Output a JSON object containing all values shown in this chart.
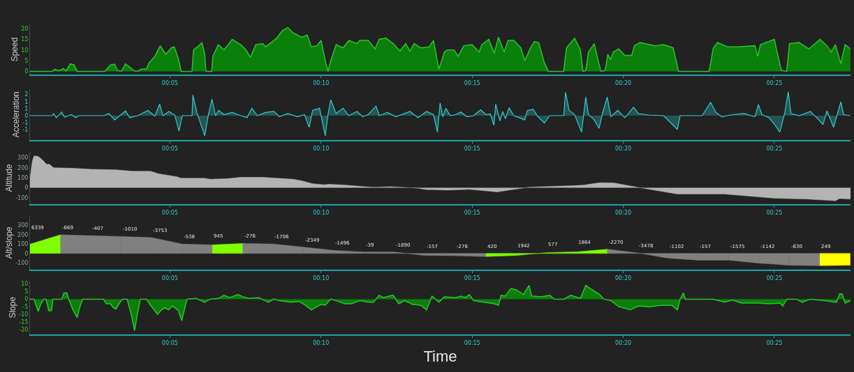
{
  "chart_data": [
    {
      "type": "area",
      "ylabel": "Speed",
      "color": "#0a7f0a",
      "xlim": [
        0.37,
        27.52
      ],
      "xticks": [
        {
          "value": 5,
          "label": "00:05"
        },
        {
          "value": 10,
          "label": "00:10"
        },
        {
          "value": 15,
          "label": "00:15"
        },
        {
          "value": 20,
          "label": "00:20"
        },
        {
          "value": 25,
          "label": "00:25"
        }
      ],
      "ylim": [
        -1.5,
        22
      ],
      "yticks": [
        0,
        5,
        10,
        15,
        20
      ],
      "x": [
        0.37,
        1.1,
        1.19,
        1.33,
        1.47,
        1.56,
        1.7,
        1.83,
        1.93,
        2.84,
        3.03,
        3.17,
        3.26,
        3.39,
        3.53,
        3.81,
        3.94,
        4.04,
        4.22,
        4.31,
        4.5,
        4.68,
        4.86,
        5.05,
        5.14,
        5.28,
        5.37,
        5.73,
        5.78,
        5.96,
        6.06,
        6.15,
        6.19,
        6.38,
        6.42,
        6.6,
        6.79,
        7.06,
        7.34,
        7.52,
        7.66,
        7.84,
        8.07,
        8.17,
        8.53,
        8.72,
        8.9,
        9.08,
        9.36,
        9.54,
        9.68,
        9.86,
        10.0,
        10.14,
        10.23,
        10.32,
        10.5,
        10.73,
        10.92,
        11.19,
        11.28,
        11.56,
        11.79,
        11.92,
        12.15,
        12.39,
        12.61,
        12.8,
        12.94,
        13.08,
        13.3,
        13.58,
        13.72,
        13.9,
        14.08,
        14.17,
        14.4,
        14.54,
        14.72,
        15.0,
        15.23,
        15.32,
        15.55,
        15.73,
        15.87,
        16.06,
        16.19,
        16.38,
        16.61,
        16.74,
        16.93,
        17.06,
        17.2,
        17.39,
        17.52,
        18.03,
        18.12,
        18.39,
        18.58,
        18.67,
        18.76,
        18.85,
        19.04,
        19.17,
        19.26,
        19.4,
        19.49,
        19.58,
        19.67,
        19.85,
        20.05,
        20.28,
        20.37,
        20.55,
        21.06,
        21.33,
        21.65,
        21.83,
        22.84,
        22.98,
        23.12,
        23.44,
        23.81,
        24.36,
        24.45,
        24.54,
        25.0,
        25.09,
        25.23,
        25.41,
        25.5,
        25.82,
        26.14,
        26.51,
        26.74,
        26.88,
        27.02,
        27.2,
        27.34,
        27.52
      ],
      "values": [
        0,
        0,
        1,
        0.3,
        1.3,
        0.2,
        3.5,
        3,
        0,
        0,
        3,
        3.4,
        0.5,
        0,
        3.5,
        0.3,
        0,
        1,
        1,
        4,
        7,
        12,
        8,
        11,
        11.5,
        6,
        0,
        0,
        10,
        12,
        13.5,
        8,
        0,
        0,
        7,
        12.5,
        10,
        15,
        12.5,
        10,
        6.5,
        12.5,
        13,
        11.5,
        15.5,
        19,
        20.5,
        18,
        16,
        17,
        11.5,
        12,
        14.5,
        5,
        0,
        5,
        12.5,
        11,
        14.5,
        13,
        14.5,
        14.5,
        10.5,
        15,
        15.5,
        13,
        9.5,
        13,
        9.5,
        13,
        11,
        11.5,
        14.5,
        1,
        9,
        10,
        10,
        7,
        12,
        12.5,
        9,
        12.5,
        15,
        8.5,
        16,
        9,
        14.5,
        14.5,
        11,
        5,
        11,
        14,
        13.5,
        4,
        0,
        0,
        11,
        15.5,
        10,
        0,
        0.5,
        9,
        13,
        5,
        0,
        0.5,
        8,
        5.5,
        9,
        10.5,
        7.5,
        7.5,
        12,
        13.5,
        12,
        12.5,
        11,
        0,
        0,
        11,
        13.5,
        11.5,
        11.5,
        12,
        7,
        12.5,
        15,
        9,
        0.5,
        0,
        13,
        13.5,
        10.5,
        15,
        12,
        9,
        12.5,
        3.5,
        12.5,
        10.5
      ]
    },
    {
      "type": "area",
      "ylabel": "Acceleration",
      "color": "#33cccc",
      "xlim": [
        0.37,
        27.52
      ],
      "xticks": [
        {
          "value": 5,
          "label": "00:05"
        },
        {
          "value": 10,
          "label": "00:10"
        },
        {
          "value": 15,
          "label": "00:15"
        },
        {
          "value": 20,
          "label": "00:20"
        },
        {
          "value": 25,
          "label": "00:25"
        }
      ],
      "ylim": [
        -2.3,
        2.5
      ],
      "yticks": [
        {
          "value": 2,
          "label": "2"
        },
        {
          "value": 1.333,
          "label": "1"
        },
        {
          "value": 0.667,
          "label": "1"
        },
        {
          "value": 0,
          "label": "0"
        },
        {
          "value": -0.667,
          "label": "-1"
        },
        {
          "value": -1.333,
          "label": "-1"
        }
      ],
      "x": [
        0.37,
        1.1,
        1.15,
        1.24,
        1.42,
        1.51,
        1.74,
        1.88,
        1.97,
        2.8,
        2.98,
        3.17,
        3.53,
        3.67,
        3.94,
        4.27,
        4.5,
        4.66,
        4.77,
        4.97,
        5.16,
        5.3,
        5.41,
        5.73,
        5.76,
        5.89,
        6.15,
        6.28,
        6.39,
        6.51,
        6.61,
        6.79,
        7.06,
        7.34,
        7.55,
        7.71,
        7.89,
        8.17,
        8.44,
        8.62,
        8.9,
        9.22,
        9.45,
        9.61,
        9.72,
        9.95,
        10.14,
        10.23,
        10.32,
        10.5,
        10.73,
        10.92,
        11.19,
        11.38,
        11.56,
        11.82,
        11.93,
        12.2,
        12.48,
        12.94,
        13.21,
        13.49,
        13.72,
        13.85,
        13.94,
        14.03,
        14.13,
        14.27,
        14.45,
        14.63,
        14.82,
        15.05,
        15.28,
        15.46,
        15.6,
        15.72,
        15.78,
        15.92,
        16.01,
        16.1,
        16.22,
        16.38,
        16.74,
        16.83,
        17.02,
        17.15,
        17.39,
        17.57,
        18.03,
        18.09,
        18.21,
        18.39,
        18.62,
        18.76,
        18.85,
        19.04,
        19.2,
        19.31,
        19.47,
        19.59,
        19.82,
        20.05,
        20.34,
        20.5,
        20.87,
        21.33,
        21.79,
        21.88,
        22.61,
        22.89,
        23.07,
        23.26,
        23.62,
        23.99,
        24.36,
        24.47,
        24.59,
        24.82,
        25.0,
        25.18,
        25.34,
        25.46,
        25.55,
        25.83,
        26.19,
        26.47,
        26.61,
        26.74,
        26.96,
        27.2,
        27.29,
        27.52
      ],
      "values": [
        0,
        0,
        0.2,
        -0.2,
        0.35,
        -0.15,
        0.1,
        -0.2,
        0,
        0,
        0.2,
        -0.4,
        0.45,
        -0.2,
        0,
        0.5,
        -0.05,
        1.1,
        0,
        0.4,
        0.05,
        -1.45,
        0,
        0,
        1.95,
        0.3,
        -1.9,
        0.2,
        1.55,
        0,
        0.5,
        0.1,
        0.3,
        0,
        -0.2,
        0.7,
        0,
        0.3,
        0.4,
        -0.1,
        0.2,
        -0.1,
        0.1,
        -1.1,
        0.5,
        0.7,
        -1.9,
        0.1,
        1.5,
        0.2,
        0.7,
        0,
        0.4,
        -0.1,
        0.1,
        0.9,
        0,
        0.3,
        -0.1,
        0.4,
        -0.2,
        0.4,
        0.1,
        -1.55,
        1.2,
        -0.1,
        0.7,
        0,
        0.1,
        0.35,
        -0.1,
        0,
        0.55,
        0.1,
        0.15,
        -0.9,
        1.1,
        -0.5,
        0.4,
        -0.3,
        0.75,
        0,
        -0.4,
        0.5,
        0.6,
        0,
        -0.7,
        0,
        0,
        2.2,
        0.5,
        0.1,
        -1.55,
        1.75,
        0.1,
        -0.4,
        -1.2,
        0.2,
        1.75,
        -0.1,
        0.5,
        -0.2,
        0.8,
        0.2,
        0.05,
        0,
        -1.3,
        0,
        0,
        1.25,
        0.3,
        -0.1,
        0.1,
        0.2,
        -0.1,
        1.05,
        0.1,
        -0.2,
        -0.8,
        -1.55,
        0.2,
        2.25,
        0.2,
        0,
        0.4,
        -0.4,
        -0.85,
        0.45,
        -1.1,
        1.3,
        0.1,
        0
      ]
    },
    {
      "type": "area",
      "ylabel": "Altitude",
      "color": "#b3b3b3",
      "xlim": [
        0.37,
        27.52
      ],
      "xticks": [
        {
          "value": 5,
          "label": "00:05"
        },
        {
          "value": 10,
          "label": "00:10"
        },
        {
          "value": 15,
          "label": "00:15"
        },
        {
          "value": 20,
          "label": "00:20"
        },
        {
          "value": 25,
          "label": "00:25"
        }
      ],
      "ylim": [
        -165,
        360
      ],
      "yticks": [
        300,
        200,
        100,
        0,
        -100
      ],
      "x": [
        0.37,
        0.44,
        0.5,
        0.64,
        0.78,
        0.92,
        1.01,
        1.15,
        1.83,
        2.39,
        3.21,
        3.76,
        4.36,
        4.63,
        5.23,
        5.37,
        6.15,
        6.33,
        6.88,
        7.34,
        8.07,
        8.53,
        9.08,
        9.36,
        9.72,
        10.09,
        10.28,
        10.83,
        11.47,
        11.74,
        12.29,
        12.66,
        13.21,
        13.49,
        13.72,
        14.17,
        14.91,
        15.83,
        16.28,
        16.93,
        18.3,
        18.67,
        19.22,
        19.68,
        20.6,
        21.79,
        23.35,
        25.0,
        26.1,
        27.02,
        27.16,
        27.52
      ],
      "values": [
        95,
        260,
        320,
        315,
        280,
        235,
        235,
        200,
        195,
        185,
        180,
        165,
        165,
        140,
        110,
        95,
        95,
        85,
        90,
        105,
        105,
        95,
        85,
        70,
        40,
        30,
        35,
        25,
        10,
        5,
        10,
        5,
        -5,
        -20,
        -20,
        -25,
        -17,
        -42,
        -22,
        6,
        20,
        25,
        50,
        48,
        -3,
        -64,
        -64,
        -106,
        -115,
        -131,
        -109,
        -115
      ]
    },
    {
      "type": "area",
      "ylabel": "Alt/slope",
      "xlim": [
        0.37,
        27.52
      ],
      "xticks": [
        {
          "value": 5,
          "label": "00:05"
        },
        {
          "value": 10,
          "label": "00:10"
        },
        {
          "value": 15,
          "label": "00:15"
        },
        {
          "value": 20,
          "label": "00:20"
        },
        {
          "value": 25,
          "label": "00:25"
        }
      ],
      "ylim": [
        -172,
        400
      ],
      "yticks": [
        300,
        200,
        100,
        0,
        -100
      ],
      "series": [
        {
          "name": "6339",
          "color": "#80ff00",
          "x": [
            0.37,
            1.38
          ],
          "values": [
            100,
            200
          ]
        },
        {
          "name": "-669",
          "color": "#808080",
          "x": [
            1.38,
            2.38
          ],
          "values": [
            200,
            190
          ]
        },
        {
          "name": "-407",
          "color": "#808080",
          "x": [
            2.38,
            3.39
          ],
          "values": [
            190,
            181
          ]
        },
        {
          "name": "-1010",
          "color": "#808080",
          "x": [
            3.39,
            4.39
          ],
          "values": [
            181,
            169
          ]
        },
        {
          "name": "-3753",
          "color": "#808080",
          "x": [
            4.39,
            5.4
          ],
          "values": [
            169,
            101
          ]
        },
        {
          "name": "-538",
          "color": "#808080",
          "x": [
            5.4,
            6.4
          ],
          "values": [
            101,
            92
          ]
        },
        {
          "name": "945",
          "color": "#80ff00",
          "x": [
            6.4,
            7.41
          ],
          "values": [
            92,
            107
          ]
        },
        {
          "name": "-276",
          "color": "#808080",
          "x": [
            7.41,
            8.41
          ],
          "values": [
            107,
            101
          ]
        },
        {
          "name": "-1706",
          "color": "#808080",
          "x": [
            8.41,
            9.42
          ],
          "values": [
            101,
            68
          ]
        },
        {
          "name": "-2349",
          "color": "#808080",
          "x": [
            9.42,
            10.42
          ],
          "values": [
            68,
            33
          ]
        },
        {
          "name": "-1496",
          "color": "#808080",
          "x": [
            10.42,
            11.43
          ],
          "values": [
            33,
            15
          ]
        },
        {
          "name": "-39",
          "color": "#808080",
          "x": [
            11.43,
            12.43
          ],
          "values": [
            15,
            15
          ]
        },
        {
          "name": "-1890",
          "color": "#808080",
          "x": [
            12.43,
            13.44
          ],
          "values": [
            15,
            -21
          ]
        },
        {
          "name": "-157",
          "color": "#808080",
          "x": [
            13.44,
            14.44
          ],
          "values": [
            -21,
            -24
          ]
        },
        {
          "name": "-276",
          "color": "#808080",
          "x": [
            14.44,
            15.45
          ],
          "values": [
            -24,
            -33
          ]
        },
        {
          "name": "420",
          "color": "#80ff00",
          "x": [
            15.45,
            16.45
          ],
          "values": [
            -33,
            -21
          ]
        },
        {
          "name": "1942",
          "color": "#80ff00",
          "x": [
            16.45,
            17.46
          ],
          "values": [
            -21,
            9
          ]
        },
        {
          "name": "577",
          "color": "#80ff00",
          "x": [
            17.46,
            18.46
          ],
          "values": [
            9,
            18
          ]
        },
        {
          "name": "1864",
          "color": "#80ff00",
          "x": [
            18.46,
            19.47
          ],
          "values": [
            18,
            45
          ]
        },
        {
          "name": "-2270",
          "color": "#808080",
          "x": [
            19.47,
            20.47
          ],
          "values": [
            45,
            6
          ]
        },
        {
          "name": "-3478",
          "color": "#808080",
          "x": [
            20.47,
            21.48
          ],
          "values": [
            6,
            -50
          ]
        },
        {
          "name": "-1102",
          "color": "#808080",
          "x": [
            21.48,
            22.48
          ],
          "values": [
            -50,
            -71
          ]
        },
        {
          "name": "-157",
          "color": "#808080",
          "x": [
            22.48,
            23.49
          ],
          "values": [
            -71,
            -71
          ]
        },
        {
          "name": "-1575",
          "color": "#808080",
          "x": [
            23.49,
            24.49
          ],
          "values": [
            -71,
            -104
          ]
        },
        {
          "name": "-1142",
          "color": "#808080",
          "x": [
            24.49,
            25.5
          ],
          "values": [
            -104,
            -125
          ]
        },
        {
          "name": "-630",
          "color": "#808080",
          "x": [
            25.5,
            26.5
          ],
          "values": [
            -125,
            -130
          ]
        },
        {
          "name": "249",
          "color": "#ffff00",
          "x": [
            26.5,
            27.51
          ],
          "values": [
            -130,
            -125
          ]
        }
      ]
    },
    {
      "type": "area",
      "ylabel": "Slope",
      "xlabel": "Time",
      "color": "#0a7f0a",
      "xlim": [
        0.37,
        27.52
      ],
      "xticks": [
        {
          "value": 5,
          "label": "00:05"
        },
        {
          "value": 10,
          "label": "00:10"
        },
        {
          "value": 15,
          "label": "00:15"
        },
        {
          "value": 20,
          "label": "00:20"
        },
        {
          "value": 25,
          "label": "00:25"
        }
      ],
      "ylim": [
        -23,
        12
      ],
      "yticks": [
        10,
        5,
        0,
        -5,
        -10,
        -15,
        -20
      ],
      "x": [
        0.37,
        0.5,
        0.64,
        0.73,
        0.83,
        0.9,
        0.99,
        1.08,
        1.13,
        1.42,
        1.49,
        1.59,
        1.65,
        1.79,
        1.93,
        2.02,
        2.11,
        2.8,
        2.89,
        3.03,
        3.12,
        3.21,
        3.35,
        3.44,
        3.58,
        3.72,
        3.83,
        3.92,
        4.02,
        4.22,
        4.36,
        4.59,
        4.72,
        4.83,
        4.95,
        5.09,
        5.28,
        5.39,
        5.5,
        5.57,
        5.87,
        6.15,
        6.33,
        6.61,
        6.79,
        6.97,
        7.25,
        7.43,
        7.61,
        7.94,
        8.26,
        8.44,
        8.62,
        8.99,
        9.27,
        9.45,
        9.68,
        9.86,
        10.0,
        10.14,
        10.32,
        10.5,
        10.78,
        11.01,
        11.28,
        11.56,
        11.74,
        11.92,
        12.06,
        12.25,
        12.39,
        12.57,
        12.76,
        13.03,
        13.3,
        13.49,
        13.67,
        13.9,
        14.08,
        14.45,
        14.63,
        14.77,
        14.91,
        15.05,
        15.37,
        15.73,
        15.87,
        15.96,
        16.1,
        16.28,
        16.47,
        16.7,
        16.88,
        16.97,
        17.29,
        17.57,
        17.71,
        18.03,
        18.26,
        18.58,
        18.76,
        18.94,
        19.22,
        19.36,
        19.59,
        19.86,
        20.23,
        20.5,
        20.87,
        21.24,
        21.61,
        21.79,
        21.88,
        21.99,
        22.06,
        22.98,
        23.35,
        23.62,
        23.9,
        24.45,
        24.86,
        25.18,
        25.28,
        25.41,
        25.73,
        25.92,
        26.19,
        26.65,
        27.06,
        27.16,
        27.24,
        27.34,
        27.52
      ],
      "values": [
        0,
        0,
        -8,
        -3,
        0,
        0,
        -7.5,
        -7.5,
        0,
        0,
        4,
        4,
        0,
        -7,
        -12,
        -5,
        0,
        0,
        -3,
        -3,
        -5.5,
        -6.5,
        -2,
        0,
        0,
        -10,
        -20.5,
        -10,
        0,
        0,
        -4,
        -10,
        -7,
        -5.5,
        -7,
        -4.5,
        -7.5,
        -14,
        -5,
        0,
        0.5,
        -2,
        0,
        0.5,
        2.5,
        1,
        3,
        1.5,
        0.5,
        1,
        -2,
        0,
        -1,
        -2,
        -1.5,
        -3.5,
        -7,
        -5,
        -3.5,
        -4,
        0,
        -1,
        -3,
        -3,
        -1,
        -2,
        -2,
        2.5,
        1,
        2,
        2.5,
        -3,
        -1,
        -3.5,
        -4,
        -7,
        2,
        -2,
        1.5,
        1,
        2,
        1,
        3,
        -1,
        -2,
        -3,
        -4,
        2.5,
        2,
        7,
        6,
        3,
        9,
        2,
        1.5,
        2.5,
        0,
        0,
        2.5,
        0.5,
        9,
        6.5,
        3,
        0,
        -1,
        -5,
        -7,
        -4.5,
        -5,
        -4,
        -4,
        -7,
        0,
        4,
        0,
        0,
        -2,
        -0.5,
        -2.5,
        -2.5,
        -3,
        -2.5,
        -4.5,
        0,
        0,
        -2,
        0,
        -1,
        -2,
        3.5,
        3.5,
        -2.5,
        -1
      ]
    }
  ]
}
